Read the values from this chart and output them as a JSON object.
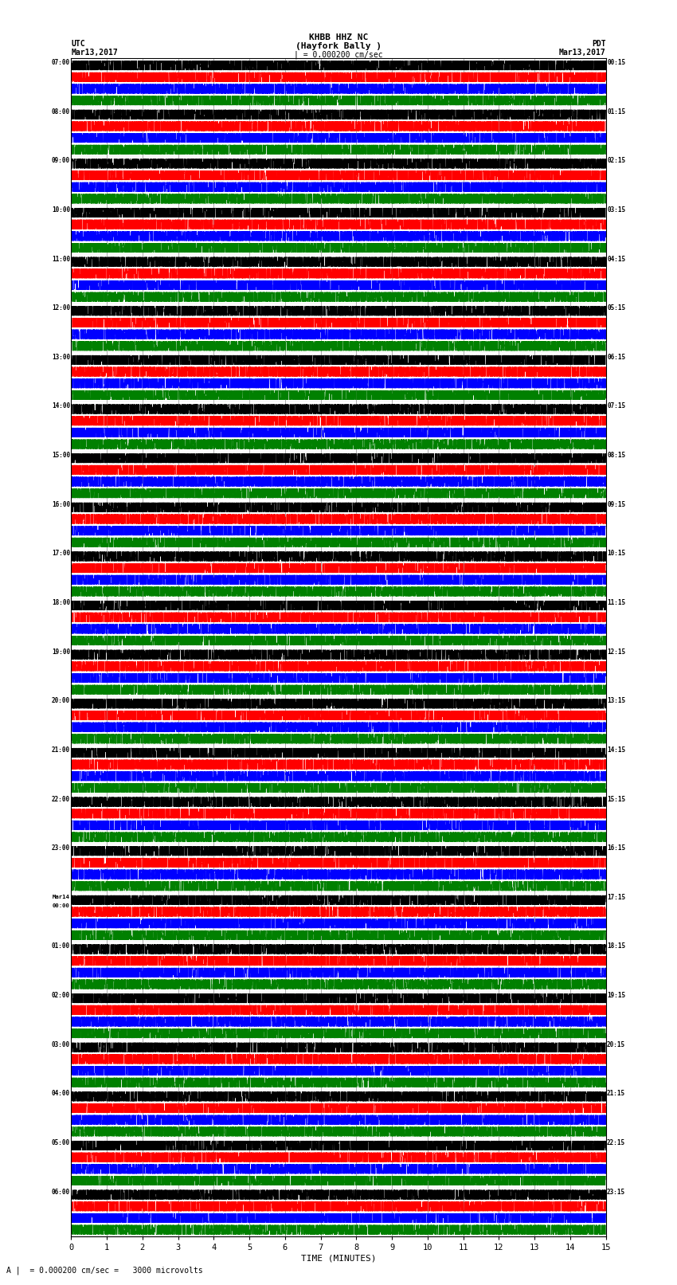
{
  "title_line1": "KHBB HHZ NC",
  "title_line2": "(Hayfork Bally )",
  "title_line3": "| = 0.000200 cm/sec",
  "header_left_line1": "UTC",
  "header_left_line2": "Mar13,2017",
  "header_right_line1": "PDT",
  "header_right_line2": "Mar13,2017",
  "footer_label": "A |  = 0.000200 cm/sec =   3000 microvolts",
  "xlabel": "TIME (MINUTES)",
  "xmin": 0,
  "xmax": 15,
  "xticks": [
    0,
    1,
    2,
    3,
    4,
    5,
    6,
    7,
    8,
    9,
    10,
    11,
    12,
    13,
    14,
    15
  ],
  "bg_color": "#ffffff",
  "trace_colors": [
    "black",
    "red",
    "blue",
    "green"
  ],
  "grid_color": "#777777",
  "left_labels_utc": [
    "07:00",
    "08:00",
    "09:00",
    "10:00",
    "11:00",
    "12:00",
    "13:00",
    "14:00",
    "15:00",
    "16:00",
    "17:00",
    "18:00",
    "19:00",
    "20:00",
    "21:00",
    "22:00",
    "23:00",
    "Mar14\n00:00",
    "01:00",
    "02:00",
    "03:00",
    "04:00",
    "05:00",
    "06:00"
  ],
  "right_labels_pdt": [
    "00:15",
    "01:15",
    "02:15",
    "03:15",
    "04:15",
    "05:15",
    "06:15",
    "07:15",
    "08:15",
    "09:15",
    "10:15",
    "11:15",
    "12:15",
    "13:15",
    "14:15",
    "15:15",
    "16:15",
    "17:15",
    "18:15",
    "19:15",
    "20:15",
    "21:15",
    "22:15",
    "23:15"
  ],
  "num_rows": 24,
  "traces_per_row": 4,
  "noise_seed": 42,
  "fig_width": 8.5,
  "fig_height": 16.13,
  "dpi": 100,
  "samples_per_minute": 400,
  "base_noise_amp": [
    0.012,
    0.018,
    0.014,
    0.01
  ],
  "spike_prob": 0.003,
  "spike_amp_scale": [
    0.06,
    0.09,
    0.07,
    0.05
  ]
}
